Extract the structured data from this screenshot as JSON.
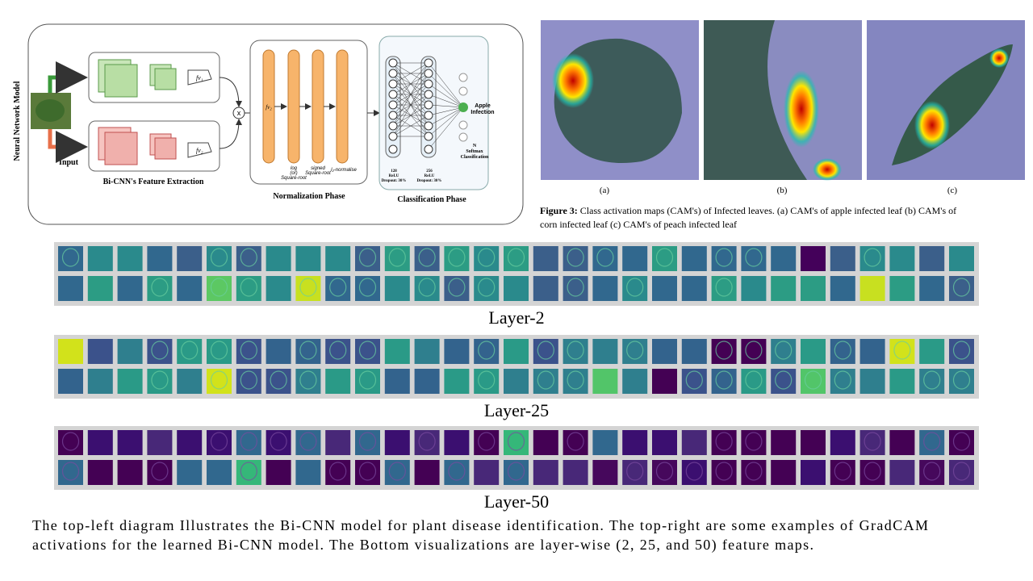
{
  "diagram": {
    "side_label": "Neural Network Model",
    "input_label": "Input",
    "feature_extraction": "Bi-CNN's Feature Extraction",
    "fv1": "fv₁",
    "fv2": "fv₂",
    "product": "x",
    "norm_input": "fv₂",
    "norm_step1": [
      "log",
      "(or)",
      "Square-root"
    ],
    "norm_step2": [
      "signed",
      "Square-root"
    ],
    "norm_step3": "l₂-normalise",
    "normalization_phase": "Normalization Phase",
    "layer1": [
      "128",
      "ReLU",
      "Dropout: 30%"
    ],
    "layer2": [
      "256",
      "ReLU",
      "Dropout: 30%"
    ],
    "output": [
      "Apple",
      "Infection"
    ],
    "softmax": [
      "N",
      "Softmax",
      "Classification"
    ],
    "classification_phase": "Classification Phase"
  },
  "figure": {
    "panels": [
      "(a)",
      "(b)",
      "(c)"
    ],
    "caption_label": "Figure 3:",
    "caption_lines": [
      "Class activation maps (CAM's) of Infected leaves. (a) CAM's of apple infected leaf (b) CAM's of",
      "corn infected leaf (c) CAM's of peach infected leaf"
    ]
  },
  "feature_maps": [
    "Layer-2",
    "Layer-25",
    "Layer-50"
  ],
  "description": [
    "The top-left diagram Illustrates the Bi-CNN model for plant disease identification. The top-right are some examples  of GradCAM",
    "activations for the learned Bi-CNN model. The Bottom visualizations are layer-wise (2, 25, and 50) feature maps."
  ]
}
